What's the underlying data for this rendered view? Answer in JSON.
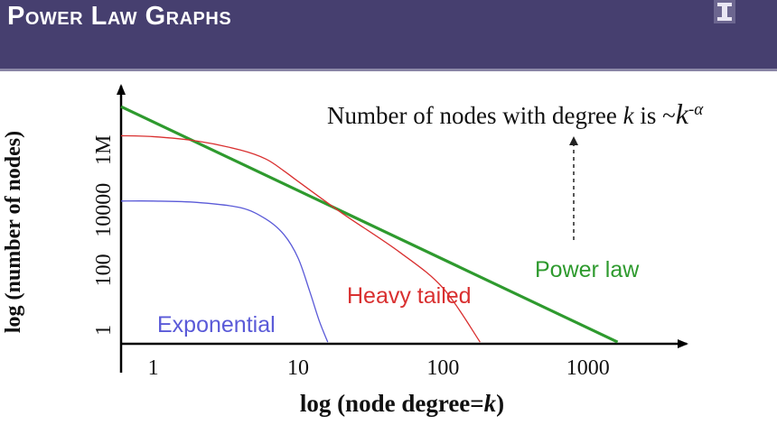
{
  "slide": {
    "title": "Power Law Graphs"
  },
  "annotation": {
    "prefix": "Number of nodes with degree ",
    "var": "k",
    "mid": " is ~",
    "exp_base": "k",
    "exp": "-α"
  },
  "colors": {
    "header_bg": "#463f6f",
    "power_law": "#2e9a2e",
    "heavy_tailed": "#d93030",
    "exponential": "#5a5ad8"
  },
  "chart_data": {
    "type": "line",
    "xlabel": "log (node degree=k)",
    "ylabel": "log (number of nodes)",
    "x_scale": "log",
    "y_scale": "log",
    "x_ticks": [
      "1",
      "10",
      "100",
      "1000"
    ],
    "y_ticks": [
      "1",
      "100",
      "10000",
      "1M"
    ],
    "xlim": [
      0.6,
      2700
    ],
    "ylim": [
      0.35,
      80000000
    ],
    "series": [
      {
        "name": "Power law",
        "color": "#2e9a2e",
        "x": [
          0.6,
          1600
        ],
        "y": [
          28000000,
          0.4
        ]
      },
      {
        "name": "Heavy tailed",
        "color": "#d93030",
        "x": [
          0.6,
          1,
          2,
          4,
          6,
          8,
          10,
          20,
          50,
          100,
          180
        ],
        "y": [
          3000000,
          2800000,
          2000000,
          1000000,
          500000,
          200000,
          90000,
          8000,
          400,
          25,
          0.4
        ]
      },
      {
        "name": "Exponential",
        "color": "#5a5ad8",
        "x": [
          0.6,
          1,
          2,
          4,
          6,
          8,
          10,
          12,
          14,
          16
        ],
        "y": [
          20000,
          20000,
          18000,
          12000,
          5000,
          1500,
          250,
          20,
          2,
          0.4
        ]
      }
    ],
    "legend": "labels placed next to curves"
  }
}
